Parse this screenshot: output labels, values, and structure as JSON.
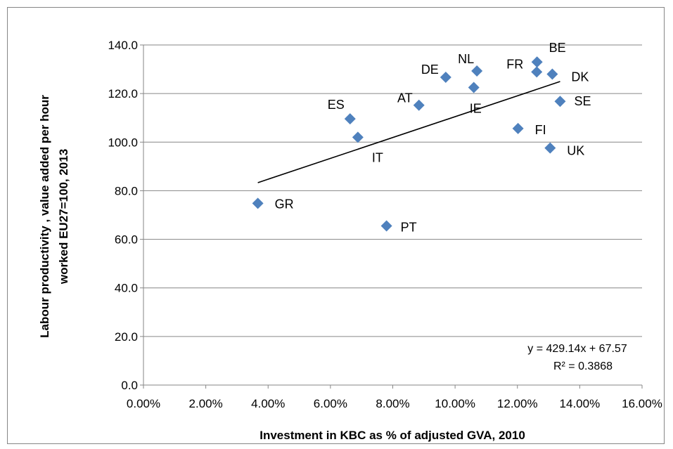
{
  "chart_data": {
    "type": "scatter",
    "title": "",
    "xlabel": "Investment in KBC as % of adjusted GVA, 2010",
    "ylabel": "Labour productivity , value added per hour worked EU27=100, 2013",
    "ylabel_lines": [
      "Labour productivity , value added per hour",
      "worked EU27=100, 2013"
    ],
    "xlim": [
      0,
      0.16
    ],
    "ylim": [
      0,
      140
    ],
    "x_ticks": [
      0,
      0.02,
      0.04,
      0.06,
      0.08,
      0.1,
      0.12,
      0.14,
      0.16
    ],
    "x_tick_labels": [
      "0.00%",
      "2.00%",
      "4.00%",
      "6.00%",
      "8.00%",
      "10.00%",
      "12.00%",
      "14.00%",
      "16.00%"
    ],
    "y_ticks": [
      0,
      20,
      40,
      60,
      80,
      100,
      120,
      140
    ],
    "y_tick_labels": [
      "0.0",
      "20.0",
      "40.0",
      "60.0",
      "80.0",
      "100.0",
      "120.0",
      "140.0"
    ],
    "grid": "horizontal",
    "marker_color": "#4F81BD",
    "points": [
      {
        "label": "GR",
        "x": 0.0367,
        "y": 74.8
      },
      {
        "label": "PT",
        "x": 0.078,
        "y": 65.5
      },
      {
        "label": "ES",
        "x": 0.0663,
        "y": 109.6
      },
      {
        "label": "IT",
        "x": 0.0688,
        "y": 102.0
      },
      {
        "label": "AT",
        "x": 0.0884,
        "y": 115.2
      },
      {
        "label": "DE",
        "x": 0.097,
        "y": 126.7
      },
      {
        "label": "IE",
        "x": 0.106,
        "y": 122.5
      },
      {
        "label": "NL",
        "x": 0.107,
        "y": 129.3
      },
      {
        "label": "FI",
        "x": 0.1202,
        "y": 105.6
      },
      {
        "label": "FR",
        "x": 0.1262,
        "y": 128.9
      },
      {
        "label": "BE",
        "x": 0.1263,
        "y": 133.0
      },
      {
        "label": "DK",
        "x": 0.1312,
        "y": 128.0
      },
      {
        "label": "UK",
        "x": 0.1305,
        "y": 97.6
      },
      {
        "label": "SE",
        "x": 0.1337,
        "y": 116.8
      }
    ],
    "trendline": {
      "slope": 429.14,
      "intercept": 67.57,
      "x_range": [
        0.0367,
        0.1337
      ]
    },
    "equation_lines": [
      "y = 429.14x + 67.57",
      "R² = 0.3868"
    ]
  }
}
